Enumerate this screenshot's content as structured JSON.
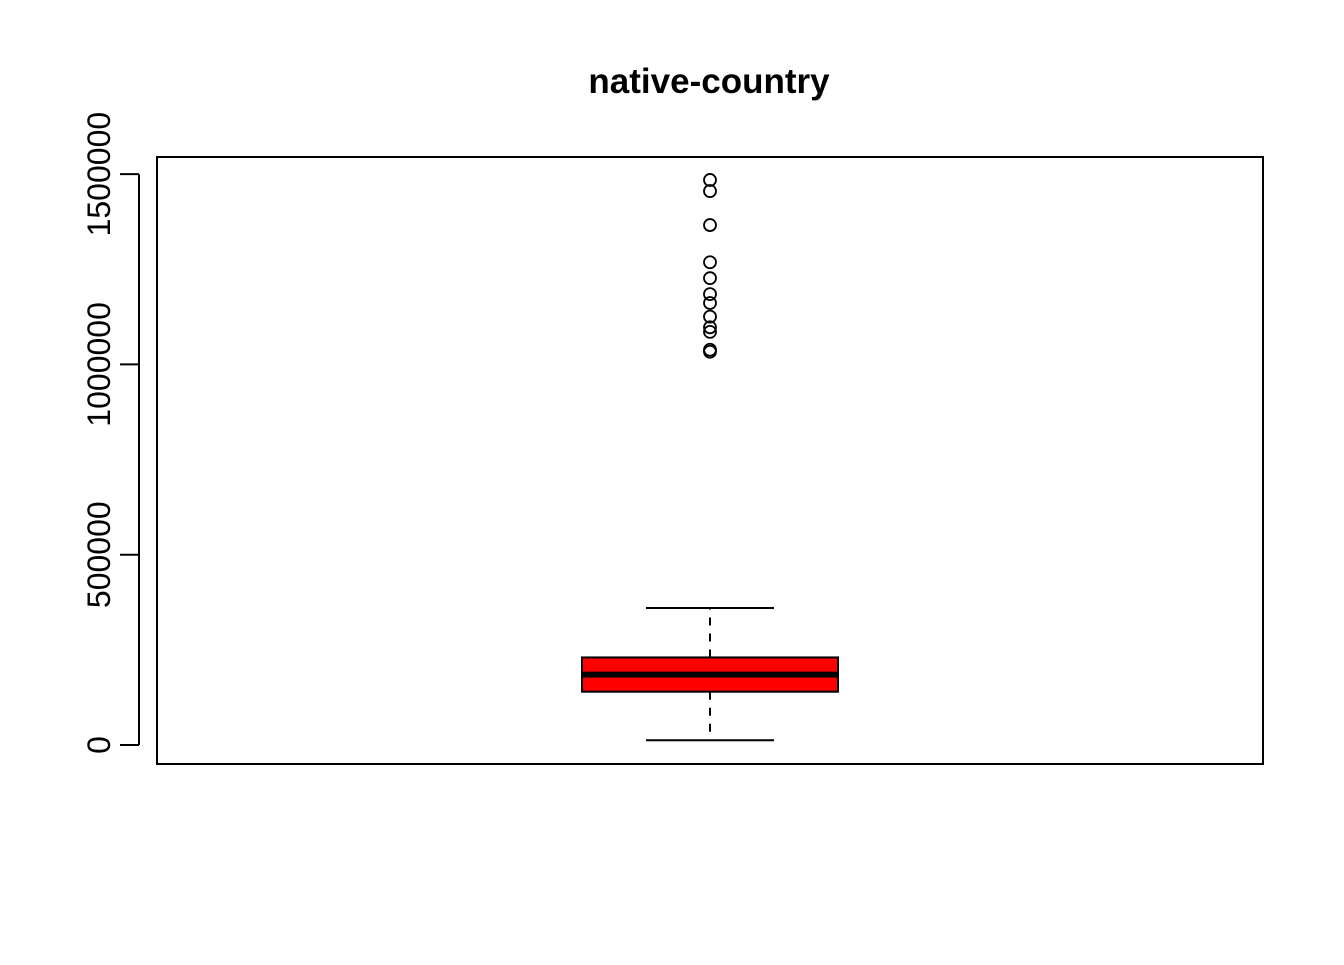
{
  "chart_data": {
    "type": "box",
    "title": "native-country",
    "xlabel": "",
    "ylabel": "",
    "ylim": [
      -50000,
      1545000
    ],
    "y_ticks": [
      0,
      500000,
      1000000,
      1500000
    ],
    "y_tick_labels": [
      "0",
      "500000",
      "1000000",
      "1500000"
    ],
    "grid": false,
    "box": {
      "whisker_low": 12285,
      "q1": 140000,
      "median": 185000,
      "q3": 230000,
      "whisker_high": 360000,
      "fill_color": "#ff0000",
      "outliers": [
        1484705,
        1455435,
        1366120,
        1268339,
        1226583,
        1184622,
        1161363,
        1125613,
        1097453,
        1085515,
        1038553,
        1033222
      ]
    }
  }
}
